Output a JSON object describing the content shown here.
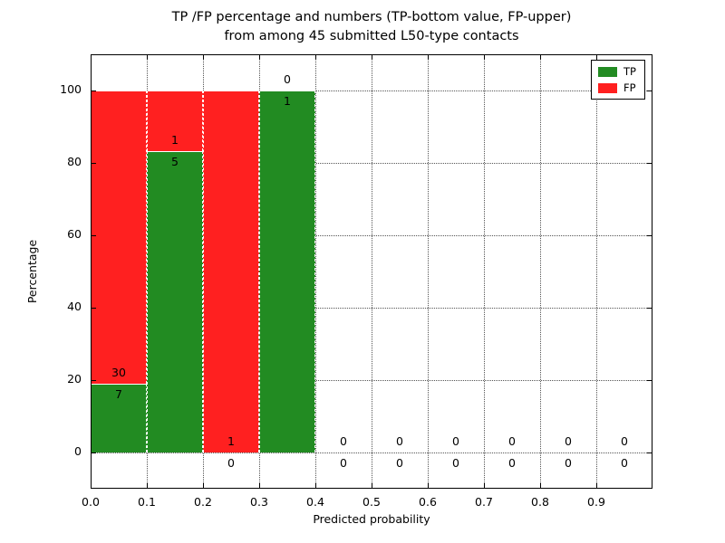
{
  "chart_data": {
    "type": "bar",
    "stacked": true,
    "title": "TP /FP percentage and numbers (TP-bottom value, FP-upper)\nfrom among 45 submitted L50-type contacts",
    "xlabel": "Predicted probability",
    "ylabel": "Percentage",
    "total_contacts": 45,
    "xlim": [
      0.0,
      1.0
    ],
    "ylim": [
      -10,
      110
    ],
    "xticks": [
      0.0,
      0.1,
      0.2,
      0.3,
      0.4,
      0.5,
      0.6,
      0.7,
      0.8,
      0.9
    ],
    "xtick_labels": [
      "0.0",
      "0.1",
      "0.2",
      "0.3",
      "0.4",
      "0.5",
      "0.6",
      "0.7",
      "0.8",
      "0.9"
    ],
    "yticks": [
      0,
      20,
      40,
      60,
      80,
      100
    ],
    "ytick_labels": [
      "0",
      "20",
      "40",
      "60",
      "80",
      "100"
    ],
    "grid": {
      "visible": true,
      "style": "dotted"
    },
    "bin_width": 0.1,
    "series": [
      {
        "name": "TP",
        "color": "#228b22"
      },
      {
        "name": "FP",
        "color": "#ff2020"
      }
    ],
    "bins": [
      {
        "x_start": 0.0,
        "x_end": 0.1,
        "tp_count": 7,
        "fp_count": 30,
        "tp_pct": 18.9,
        "fp_pct": 81.1
      },
      {
        "x_start": 0.1,
        "x_end": 0.2,
        "tp_count": 5,
        "fp_count": 1,
        "tp_pct": 83.3,
        "fp_pct": 16.7
      },
      {
        "x_start": 0.2,
        "x_end": 0.3,
        "tp_count": 0,
        "fp_count": 1,
        "tp_pct": 0,
        "fp_pct": 100
      },
      {
        "x_start": 0.3,
        "x_end": 0.4,
        "tp_count": 1,
        "fp_count": 0,
        "tp_pct": 100,
        "fp_pct": 0
      },
      {
        "x_start": 0.4,
        "x_end": 0.5,
        "tp_count": 0,
        "fp_count": 0,
        "tp_pct": 0,
        "fp_pct": 0
      },
      {
        "x_start": 0.5,
        "x_end": 0.6,
        "tp_count": 0,
        "fp_count": 0,
        "tp_pct": 0,
        "fp_pct": 0
      },
      {
        "x_start": 0.6,
        "x_end": 0.7,
        "tp_count": 0,
        "fp_count": 0,
        "tp_pct": 0,
        "fp_pct": 0
      },
      {
        "x_start": 0.7,
        "x_end": 0.8,
        "tp_count": 0,
        "fp_count": 0,
        "tp_pct": 0,
        "fp_pct": 0
      },
      {
        "x_start": 0.8,
        "x_end": 0.9,
        "tp_count": 0,
        "fp_count": 0,
        "tp_pct": 0,
        "fp_pct": 0
      },
      {
        "x_start": 0.9,
        "x_end": 1.0,
        "tp_count": 0,
        "fp_count": 0,
        "tp_pct": 0,
        "fp_pct": 0
      }
    ],
    "legend": {
      "position": "upper right",
      "entries": [
        {
          "label": "TP",
          "color": "#228b22"
        },
        {
          "label": "FP",
          "color": "#ff2020"
        }
      ]
    }
  }
}
